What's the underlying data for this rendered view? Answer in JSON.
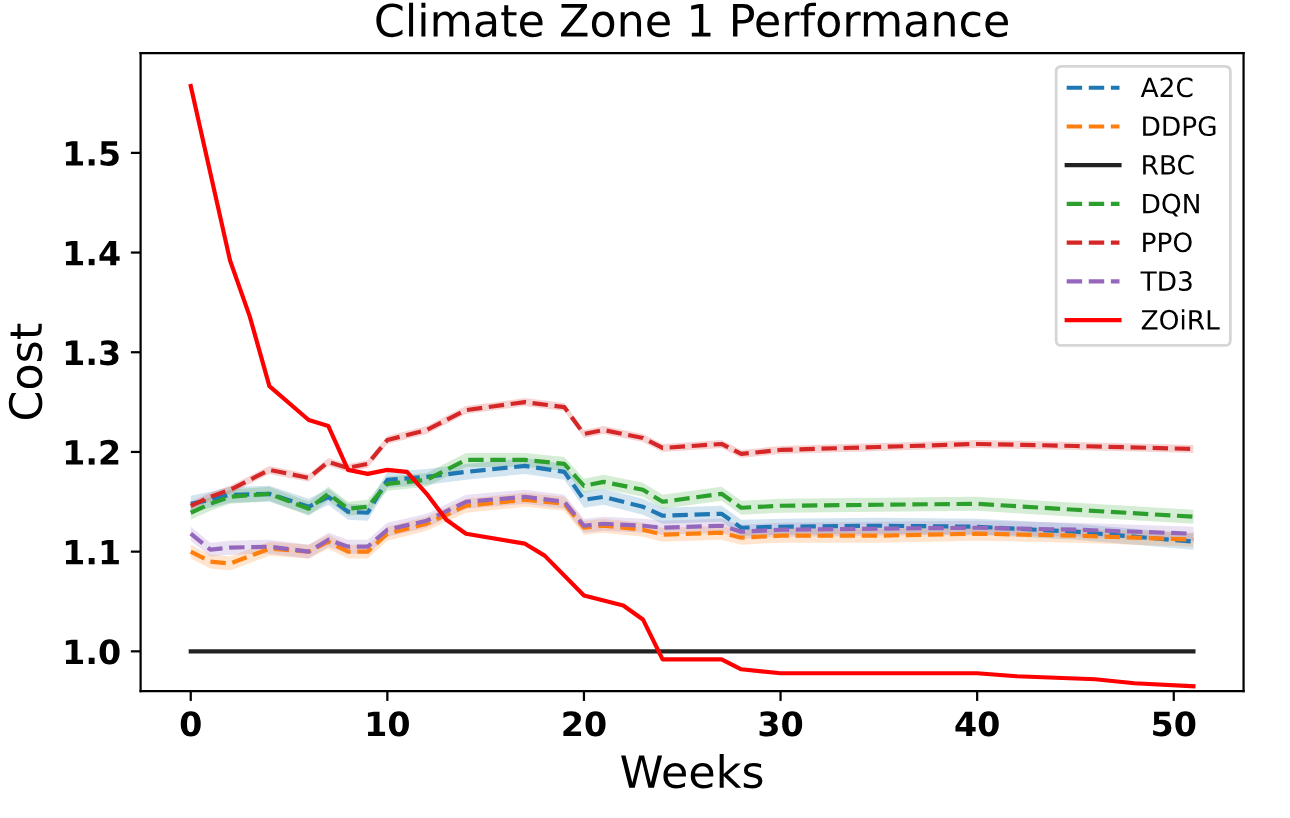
{
  "chart_data": {
    "type": "line",
    "title": "Climate Zone 1 Performance",
    "xlabel": "Weeks",
    "ylabel": "Cost",
    "x": [
      0,
      1,
      2,
      4,
      6,
      7,
      8,
      9,
      10,
      12,
      14,
      17,
      19,
      20,
      21,
      23,
      24,
      27,
      28,
      30,
      35,
      40,
      45,
      51
    ],
    "xlim": [
      -2.55,
      53.55
    ],
    "xticks": [
      0,
      10,
      20,
      30,
      40,
      50
    ],
    "ylim": [
      0.96,
      1.6
    ],
    "yticks": [
      {
        "value": 1.0,
        "label": "1.0"
      },
      1.1,
      1.2,
      1.3,
      1.4,
      1.5
    ],
    "legend": "top right",
    "grid": false,
    "marker": "none",
    "series": [
      {
        "name": "A2C",
        "color": "#1f77b4",
        "line_style": "dashed",
        "values": [
          1.148,
          1.152,
          1.157,
          1.158,
          1.145,
          1.155,
          1.14,
          1.139,
          1.172,
          1.175,
          1.18,
          1.186,
          1.18,
          1.152,
          1.155,
          1.145,
          1.136,
          1.138,
          1.124,
          1.125,
          1.126,
          1.125,
          1.12,
          1.11
        ],
        "lower": [
          1.14,
          1.144,
          1.149,
          1.15,
          1.137,
          1.147,
          1.132,
          1.131,
          1.164,
          1.167,
          1.172,
          1.178,
          1.172,
          1.144,
          1.147,
          1.137,
          1.128,
          1.13,
          1.116,
          1.117,
          1.118,
          1.117,
          1.112,
          1.102
        ],
        "upper": [
          1.156,
          1.16,
          1.165,
          1.166,
          1.153,
          1.163,
          1.148,
          1.147,
          1.18,
          1.183,
          1.188,
          1.194,
          1.188,
          1.16,
          1.163,
          1.153,
          1.144,
          1.146,
          1.132,
          1.133,
          1.134,
          1.133,
          1.128,
          1.118
        ]
      },
      {
        "name": "DDPG",
        "color": "#ff7f0e",
        "line_style": "dashed",
        "values": [
          1.1,
          1.09,
          1.088,
          1.103,
          1.1,
          1.11,
          1.1,
          1.1,
          1.118,
          1.128,
          1.146,
          1.152,
          1.148,
          1.124,
          1.126,
          1.122,
          1.117,
          1.119,
          1.114,
          1.116,
          1.116,
          1.118,
          1.116,
          1.112
        ],
        "lower": [
          1.093,
          1.083,
          1.081,
          1.096,
          1.093,
          1.103,
          1.093,
          1.093,
          1.111,
          1.121,
          1.139,
          1.145,
          1.141,
          1.117,
          1.119,
          1.115,
          1.11,
          1.112,
          1.107,
          1.109,
          1.109,
          1.111,
          1.109,
          1.105
        ],
        "upper": [
          1.107,
          1.097,
          1.095,
          1.11,
          1.107,
          1.117,
          1.107,
          1.107,
          1.125,
          1.135,
          1.153,
          1.159,
          1.155,
          1.131,
          1.133,
          1.129,
          1.124,
          1.126,
          1.121,
          1.123,
          1.123,
          1.125,
          1.123,
          1.119
        ]
      },
      {
        "name": "RBC",
        "color": "#222222",
        "line_style": "solid",
        "x": [
          0,
          51
        ],
        "values": [
          1.0,
          1.0
        ]
      },
      {
        "name": "DQN",
        "color": "#2ca02c",
        "line_style": "dashed",
        "values": [
          1.139,
          1.148,
          1.155,
          1.158,
          1.143,
          1.158,
          1.143,
          1.145,
          1.168,
          1.172,
          1.192,
          1.192,
          1.188,
          1.166,
          1.17,
          1.162,
          1.15,
          1.158,
          1.144,
          1.146,
          1.147,
          1.148,
          1.142,
          1.135
        ],
        "lower": [
          1.132,
          1.141,
          1.148,
          1.151,
          1.136,
          1.151,
          1.136,
          1.138,
          1.161,
          1.165,
          1.185,
          1.185,
          1.181,
          1.159,
          1.163,
          1.155,
          1.143,
          1.151,
          1.137,
          1.139,
          1.14,
          1.141,
          1.135,
          1.128
        ],
        "upper": [
          1.146,
          1.155,
          1.162,
          1.165,
          1.15,
          1.165,
          1.15,
          1.152,
          1.175,
          1.179,
          1.199,
          1.199,
          1.195,
          1.173,
          1.177,
          1.169,
          1.157,
          1.165,
          1.151,
          1.153,
          1.154,
          1.155,
          1.149,
          1.142
        ]
      },
      {
        "name": "PPO",
        "color": "#d62728",
        "line_style": "dashed",
        "values": [
          1.146,
          1.155,
          1.162,
          1.182,
          1.174,
          1.19,
          1.184,
          1.188,
          1.212,
          1.222,
          1.242,
          1.25,
          1.245,
          1.218,
          1.222,
          1.214,
          1.204,
          1.208,
          1.198,
          1.202,
          1.205,
          1.208,
          1.206,
          1.203
        ],
        "lower": [
          1.142,
          1.151,
          1.158,
          1.178,
          1.17,
          1.186,
          1.18,
          1.184,
          1.208,
          1.218,
          1.238,
          1.246,
          1.241,
          1.214,
          1.218,
          1.21,
          1.2,
          1.204,
          1.194,
          1.198,
          1.201,
          1.204,
          1.202,
          1.199
        ],
        "upper": [
          1.15,
          1.159,
          1.166,
          1.186,
          1.178,
          1.194,
          1.188,
          1.192,
          1.216,
          1.226,
          1.246,
          1.254,
          1.249,
          1.222,
          1.226,
          1.218,
          1.208,
          1.212,
          1.202,
          1.206,
          1.209,
          1.212,
          1.21,
          1.207
        ]
      },
      {
        "name": "TD3",
        "color": "#9467bd",
        "line_style": "dashed",
        "values": [
          1.118,
          1.102,
          1.104,
          1.105,
          1.1,
          1.112,
          1.105,
          1.105,
          1.122,
          1.131,
          1.15,
          1.155,
          1.15,
          1.126,
          1.128,
          1.126,
          1.124,
          1.126,
          1.12,
          1.122,
          1.123,
          1.124,
          1.122,
          1.118
        ],
        "lower": [
          1.111,
          1.095,
          1.097,
          1.098,
          1.093,
          1.105,
          1.098,
          1.098,
          1.115,
          1.124,
          1.143,
          1.148,
          1.143,
          1.119,
          1.121,
          1.119,
          1.117,
          1.119,
          1.113,
          1.115,
          1.116,
          1.117,
          1.115,
          1.111
        ],
        "upper": [
          1.125,
          1.109,
          1.111,
          1.112,
          1.107,
          1.119,
          1.112,
          1.112,
          1.129,
          1.138,
          1.157,
          1.162,
          1.157,
          1.133,
          1.135,
          1.133,
          1.131,
          1.133,
          1.127,
          1.129,
          1.13,
          1.131,
          1.129,
          1.125
        ]
      },
      {
        "name": "ZOiRL",
        "color": "#ff0000",
        "line_style": "solid",
        "x": [
          0,
          2,
          3,
          4,
          6,
          7,
          8,
          9,
          10,
          11,
          12,
          13,
          14,
          17,
          18,
          20,
          22,
          23,
          24,
          27,
          28,
          30,
          35,
          40,
          42,
          46,
          48,
          51
        ],
        "values": [
          1.567,
          1.392,
          1.336,
          1.266,
          1.232,
          1.226,
          1.182,
          1.178,
          1.182,
          1.18,
          1.158,
          1.132,
          1.118,
          1.108,
          1.096,
          1.056,
          1.046,
          1.032,
          0.992,
          0.992,
          0.982,
          0.978,
          0.978,
          0.978,
          0.975,
          0.972,
          0.968,
          0.965
        ]
      }
    ]
  }
}
